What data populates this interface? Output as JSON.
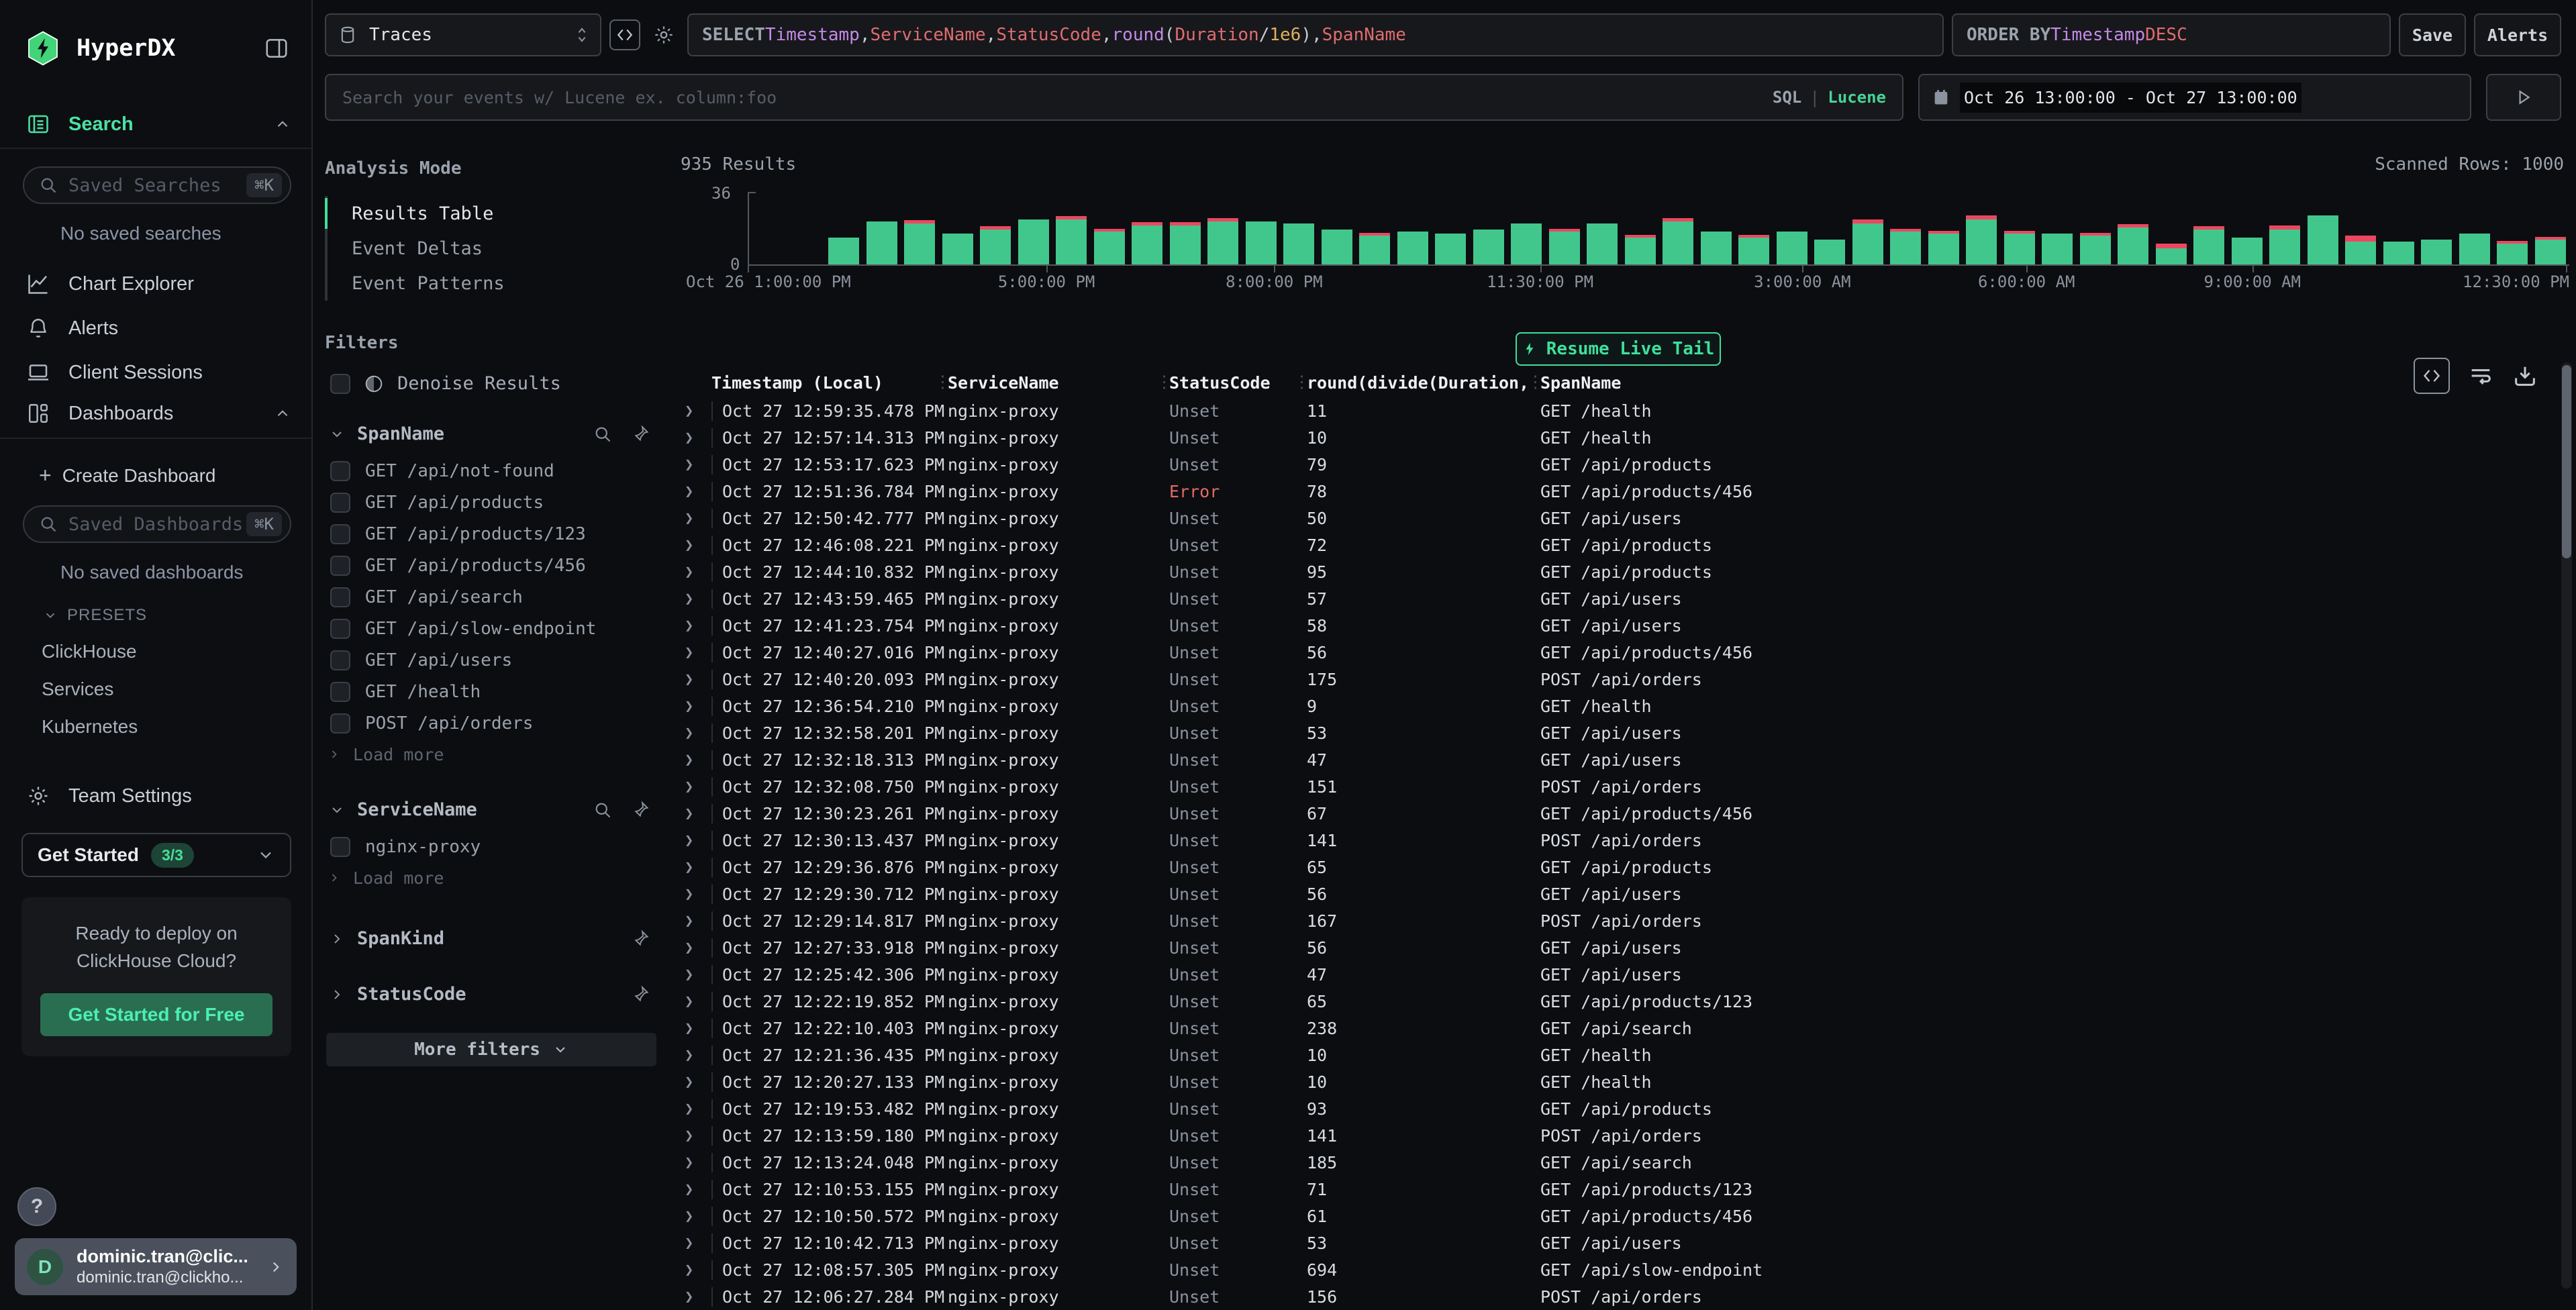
{
  "app": {
    "title": "HyperDX"
  },
  "sidebar": {
    "logo": "HyperDX",
    "search_label": "Search",
    "saved_searches_placeholder": "Saved Searches",
    "shortcut": "⌘K",
    "no_saved_searches": "No saved searches",
    "chart_explorer": "Chart Explorer",
    "alerts": "Alerts",
    "client_sessions": "Client Sessions",
    "dashboards": "Dashboards",
    "create_dashboard": "Create Dashboard",
    "plus": "+",
    "saved_dashboards_placeholder": "Saved Dashboards",
    "no_saved_dashboards": "No saved dashboards",
    "presets_label": "PRESETS",
    "preset_items": [
      "ClickHouse",
      "Services",
      "Kubernetes"
    ],
    "team_settings": "Team Settings",
    "get_started": {
      "label": "Get Started",
      "badge": "3/3"
    },
    "promo": {
      "line1": "Ready to deploy on",
      "line2": "ClickHouse Cloud?",
      "button": "Get Started for Free"
    },
    "help": "?",
    "user": {
      "initial": "D",
      "name": "dominic.tran@clic...",
      "email": "dominic.tran@clickho..."
    }
  },
  "topbar": {
    "source": "Traces",
    "select_tokens": [
      {
        "t": "SELECT ",
        "c": "kw"
      },
      {
        "t": "Timestamp",
        "c": "field"
      },
      {
        "t": ",",
        "c": "p"
      },
      {
        "t": "ServiceName",
        "c": "col"
      },
      {
        "t": ",",
        "c": "p"
      },
      {
        "t": "StatusCode",
        "c": "col"
      },
      {
        "t": ",",
        "c": "p"
      },
      {
        "t": "round",
        "c": "field"
      },
      {
        "t": "(",
        "c": "p"
      },
      {
        "t": "Duration",
        "c": "col"
      },
      {
        "t": "/",
        "c": "p"
      },
      {
        "t": "1e6",
        "c": "num"
      },
      {
        "t": ")",
        "c": "p"
      },
      {
        "t": ",",
        "c": "p"
      },
      {
        "t": "SpanName",
        "c": "col"
      }
    ],
    "order_tokens": [
      {
        "t": "ORDER BY ",
        "c": "kw"
      },
      {
        "t": "Timestamp ",
        "c": "field"
      },
      {
        "t": "DESC",
        "c": "col"
      }
    ],
    "save": "Save",
    "alerts": "Alerts",
    "search_placeholder": "Search your events w/ Lucene ex. column:foo",
    "sql": "SQL",
    "separator": "|",
    "lucene": "Lucene",
    "time_range": "Oct 26 13:00:00 - Oct 27 13:00:00"
  },
  "filters": {
    "analysis_mode_label": "Analysis Mode",
    "modes": [
      {
        "label": "Results Table",
        "active": true
      },
      {
        "label": "Event Deltas",
        "active": false
      },
      {
        "label": "Event Patterns",
        "active": false
      }
    ],
    "filters_label": "Filters",
    "denoise": "Denoise Results",
    "spanname": {
      "title": "SpanName",
      "items": [
        "GET /api/not-found",
        "GET /api/products",
        "GET /api/products/123",
        "GET /api/products/456",
        "GET /api/search",
        "GET /api/slow-endpoint",
        "GET /api/users",
        "GET /health",
        "POST /api/orders"
      ],
      "load_more": "Load more"
    },
    "servicename": {
      "title": "ServiceName",
      "items": [
        "nginx-proxy"
      ],
      "load_more": "Load more"
    },
    "spankind": {
      "title": "SpanKind"
    },
    "statuscode": {
      "title": "StatusCode"
    },
    "more_filters": "More filters"
  },
  "results": {
    "count": "935 Results",
    "scanned": "Scanned Rows: 1000",
    "live_tail": "Resume Live Tail"
  },
  "chart_data": {
    "type": "bar",
    "stacked": true,
    "title": "935 Results",
    "ylabel": "",
    "xlabel": "",
    "ylim": [
      0,
      36
    ],
    "yticks": [
      "36",
      "0"
    ],
    "legend": "none",
    "series_names": [
      "ok",
      "error"
    ],
    "colors": {
      "ok": "#41c78c",
      "error": "#ee4661"
    },
    "bars": [
      [
        0,
        0
      ],
      [
        0,
        0
      ],
      [
        13,
        0
      ],
      [
        21,
        0
      ],
      [
        20,
        1.5
      ],
      [
        15,
        0
      ],
      [
        17,
        1.5
      ],
      [
        22,
        0
      ],
      [
        22,
        1.5
      ],
      [
        16,
        1.5
      ],
      [
        19,
        1.5
      ],
      [
        19,
        1.5
      ],
      [
        21,
        1.5
      ],
      [
        21,
        0
      ],
      [
        20,
        0
      ],
      [
        17,
        0
      ],
      [
        14,
        1.5
      ],
      [
        16,
        0
      ],
      [
        15,
        0
      ],
      [
        17,
        0
      ],
      [
        20,
        0
      ],
      [
        16,
        1.5
      ],
      [
        20,
        0
      ],
      [
        13,
        1.5
      ],
      [
        21,
        1.5
      ],
      [
        16,
        0
      ],
      [
        13,
        1.5
      ],
      [
        16,
        0
      ],
      [
        12,
        0
      ],
      [
        20,
        2
      ],
      [
        16,
        1.5
      ],
      [
        15,
        1.5
      ],
      [
        22,
        2
      ],
      [
        15,
        1.5
      ],
      [
        15,
        0
      ],
      [
        14,
        1.5
      ],
      [
        18,
        1.5
      ],
      [
        8,
        2
      ],
      [
        17,
        1.5
      ],
      [
        13,
        0
      ],
      [
        17,
        2
      ],
      [
        24,
        0
      ],
      [
        11,
        3
      ],
      [
        11,
        0
      ],
      [
        12,
        0
      ],
      [
        15,
        0
      ],
      [
        10,
        1.5
      ],
      [
        12,
        1.5
      ]
    ],
    "x_axis": [
      {
        "label": "Oct 26 1:00:00 PM",
        "pos": 0,
        "anchor": "start"
      },
      {
        "label": "5:00:00 PM",
        "pos": 16.4,
        "anchor": "mid"
      },
      {
        "label": "8:00:00 PM",
        "pos": 28.9,
        "anchor": "mid"
      },
      {
        "label": "11:30:00 PM",
        "pos": 43.5,
        "anchor": "mid"
      },
      {
        "label": "3:00:00 AM",
        "pos": 57.9,
        "anchor": "mid"
      },
      {
        "label": "6:00:00 AM",
        "pos": 70.2,
        "anchor": "mid"
      },
      {
        "label": "9:00:00 AM",
        "pos": 82.6,
        "anchor": "mid"
      },
      {
        "label": "12:30:00 PM",
        "pos": 99.8,
        "anchor": "end"
      }
    ]
  },
  "table": {
    "columns": [
      "Timestamp (Local)",
      "ServiceName",
      "StatusCode",
      "round(divide(Duration,",
      "SpanName"
    ],
    "rows": [
      [
        "Oct 27 12:59:35.478 PM",
        "nginx-proxy",
        "Unset",
        "11",
        "GET /health"
      ],
      [
        "Oct 27 12:57:14.313 PM",
        "nginx-proxy",
        "Unset",
        "10",
        "GET /health"
      ],
      [
        "Oct 27 12:53:17.623 PM",
        "nginx-proxy",
        "Unset",
        "79",
        "GET /api/products"
      ],
      [
        "Oct 27 12:51:36.784 PM",
        "nginx-proxy",
        "Error",
        "78",
        "GET /api/products/456"
      ],
      [
        "Oct 27 12:50:42.777 PM",
        "nginx-proxy",
        "Unset",
        "50",
        "GET /api/users"
      ],
      [
        "Oct 27 12:46:08.221 PM",
        "nginx-proxy",
        "Unset",
        "72",
        "GET /api/products"
      ],
      [
        "Oct 27 12:44:10.832 PM",
        "nginx-proxy",
        "Unset",
        "95",
        "GET /api/products"
      ],
      [
        "Oct 27 12:43:59.465 PM",
        "nginx-proxy",
        "Unset",
        "57",
        "GET /api/users"
      ],
      [
        "Oct 27 12:41:23.754 PM",
        "nginx-proxy",
        "Unset",
        "58",
        "GET /api/users"
      ],
      [
        "Oct 27 12:40:27.016 PM",
        "nginx-proxy",
        "Unset",
        "56",
        "GET /api/products/456"
      ],
      [
        "Oct 27 12:40:20.093 PM",
        "nginx-proxy",
        "Unset",
        "175",
        "POST /api/orders"
      ],
      [
        "Oct 27 12:36:54.210 PM",
        "nginx-proxy",
        "Unset",
        "9",
        "GET /health"
      ],
      [
        "Oct 27 12:32:58.201 PM",
        "nginx-proxy",
        "Unset",
        "53",
        "GET /api/users"
      ],
      [
        "Oct 27 12:32:18.313 PM",
        "nginx-proxy",
        "Unset",
        "47",
        "GET /api/users"
      ],
      [
        "Oct 27 12:32:08.750 PM",
        "nginx-proxy",
        "Unset",
        "151",
        "POST /api/orders"
      ],
      [
        "Oct 27 12:30:23.261 PM",
        "nginx-proxy",
        "Unset",
        "67",
        "GET /api/products/456"
      ],
      [
        "Oct 27 12:30:13.437 PM",
        "nginx-proxy",
        "Unset",
        "141",
        "POST /api/orders"
      ],
      [
        "Oct 27 12:29:36.876 PM",
        "nginx-proxy",
        "Unset",
        "65",
        "GET /api/products"
      ],
      [
        "Oct 27 12:29:30.712 PM",
        "nginx-proxy",
        "Unset",
        "56",
        "GET /api/users"
      ],
      [
        "Oct 27 12:29:14.817 PM",
        "nginx-proxy",
        "Unset",
        "167",
        "POST /api/orders"
      ],
      [
        "Oct 27 12:27:33.918 PM",
        "nginx-proxy",
        "Unset",
        "56",
        "GET /api/users"
      ],
      [
        "Oct 27 12:25:42.306 PM",
        "nginx-proxy",
        "Unset",
        "47",
        "GET /api/users"
      ],
      [
        "Oct 27 12:22:19.852 PM",
        "nginx-proxy",
        "Unset",
        "65",
        "GET /api/products/123"
      ],
      [
        "Oct 27 12:22:10.403 PM",
        "nginx-proxy",
        "Unset",
        "238",
        "GET /api/search"
      ],
      [
        "Oct 27 12:21:36.435 PM",
        "nginx-proxy",
        "Unset",
        "10",
        "GET /health"
      ],
      [
        "Oct 27 12:20:27.133 PM",
        "nginx-proxy",
        "Unset",
        "10",
        "GET /health"
      ],
      [
        "Oct 27 12:19:53.482 PM",
        "nginx-proxy",
        "Unset",
        "93",
        "GET /api/products"
      ],
      [
        "Oct 27 12:13:59.180 PM",
        "nginx-proxy",
        "Unset",
        "141",
        "POST /api/orders"
      ],
      [
        "Oct 27 12:13:24.048 PM",
        "nginx-proxy",
        "Unset",
        "185",
        "GET /api/search"
      ],
      [
        "Oct 27 12:10:53.155 PM",
        "nginx-proxy",
        "Unset",
        "71",
        "GET /api/products/123"
      ],
      [
        "Oct 27 12:10:50.572 PM",
        "nginx-proxy",
        "Unset",
        "61",
        "GET /api/products/456"
      ],
      [
        "Oct 27 12:10:42.713 PM",
        "nginx-proxy",
        "Unset",
        "53",
        "GET /api/users"
      ],
      [
        "Oct 27 12:08:57.305 PM",
        "nginx-proxy",
        "Unset",
        "694",
        "GET /api/slow-endpoint"
      ],
      [
        "Oct 27 12:06:27.284 PM",
        "nginx-proxy",
        "Unset",
        "156",
        "POST /api/orders"
      ]
    ]
  }
}
